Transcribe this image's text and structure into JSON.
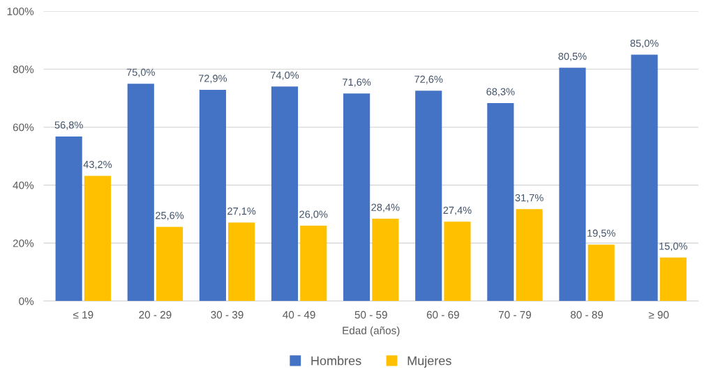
{
  "chart_data": {
    "type": "bar",
    "categories": [
      "≤ 19",
      "20 - 29",
      "30 - 39",
      "40 - 49",
      "50 - 59",
      "60 - 69",
      "70 - 79",
      "80 - 89",
      "≥ 90"
    ],
    "series": [
      {
        "name": "Hombres",
        "color": "#4472c4",
        "values": [
          56.8,
          75.0,
          72.9,
          74.0,
          71.6,
          72.6,
          68.3,
          80.5,
          85.0
        ],
        "value_labels": [
          "56,8%",
          "75,0%",
          "72,9%",
          "74,0%",
          "71,6%",
          "72,6%",
          "68,3%",
          "80,5%",
          "85,0%"
        ]
      },
      {
        "name": "Mujeres",
        "color": "#ffc000",
        "values": [
          43.2,
          25.6,
          27.1,
          26.0,
          28.4,
          27.4,
          31.7,
          19.5,
          15.0
        ],
        "value_labels": [
          "43,2%",
          "25,6%",
          "27,1%",
          "26,0%",
          "28,4%",
          "27,4%",
          "31,7%",
          "19,5%",
          "15,0%"
        ]
      }
    ],
    "xlabel": "Edad (años)",
    "ylim": [
      0,
      100
    ],
    "yticks": [
      {
        "value": 0,
        "label": "0%"
      },
      {
        "value": 20,
        "label": "20%"
      },
      {
        "value": 40,
        "label": "40%"
      },
      {
        "value": 60,
        "label": "60%"
      },
      {
        "value": 80,
        "label": "80%"
      },
      {
        "value": 100,
        "label": "100%"
      }
    ],
    "grid": "y",
    "legend": "bottom"
  }
}
